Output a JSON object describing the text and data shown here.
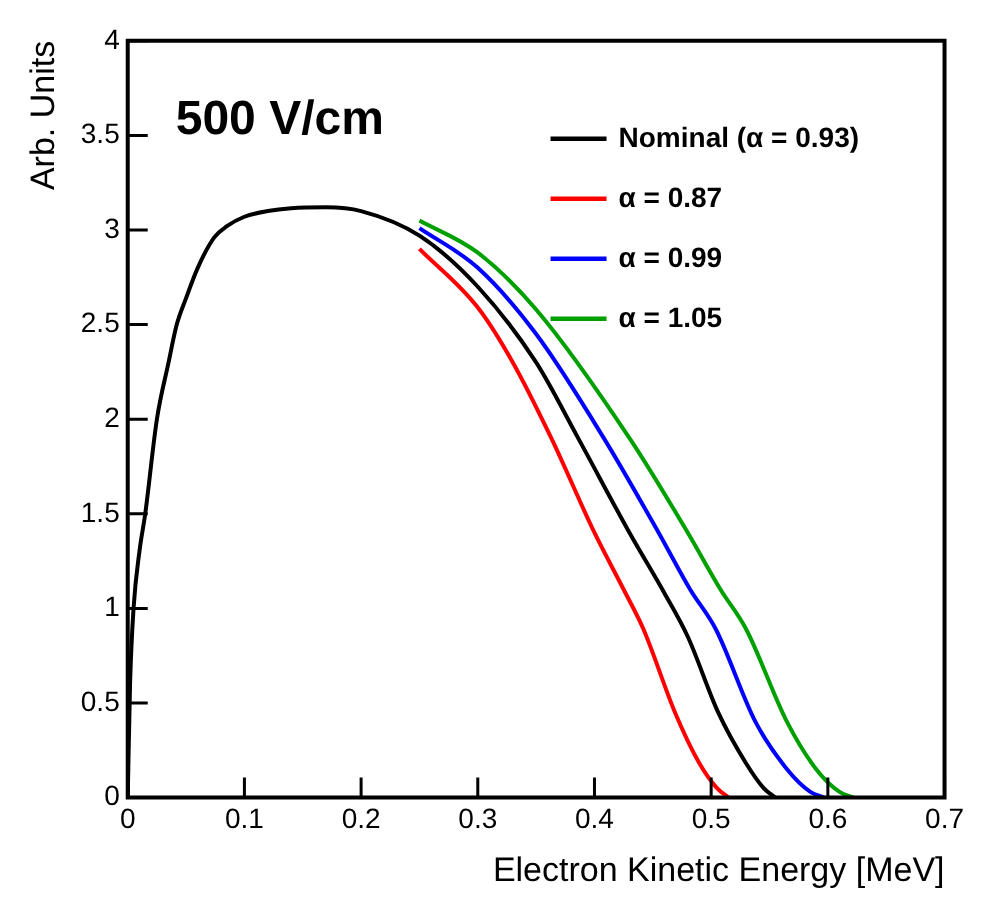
{
  "chart_data": {
    "type": "line",
    "title": "500 V/cm",
    "xlabel": "Electron Kinetic Energy [MeV]",
    "ylabel": "Arb. Units",
    "xlim": [
      0,
      0.7
    ],
    "xticks": [
      0,
      0.1,
      0.2,
      0.3,
      0.4,
      0.5,
      0.6,
      0.7
    ],
    "ylim": [
      0,
      4
    ],
    "yticks": [
      0,
      0.5,
      1,
      1.5,
      2,
      2.5,
      3,
      3.5,
      4
    ],
    "grid": false,
    "legend": "top right",
    "marker": "none",
    "line_style": "solid",
    "series": [
      {
        "name": "Nominal (α = 0.93)",
        "color": "#000000",
        "x": [
          0,
          0.002,
          0.005,
          0.01,
          0.015,
          0.025,
          0.035,
          0.042,
          0.05,
          0.06,
          0.074,
          0.085,
          0.1,
          0.12,
          0.14,
          0.17,
          0.2,
          0.25,
          0.3,
          0.35,
          0.386,
          0.43,
          0.46,
          0.48,
          0.506,
          0.53,
          0.545,
          0.555
        ],
        "values": [
          0,
          0.6,
          1.0,
          1.3,
          1.5,
          2.0,
          2.3,
          2.5,
          2.64,
          2.8,
          2.96,
          3.02,
          3.07,
          3.1,
          3.115,
          3.12,
          3.1,
          2.97,
          2.7,
          2.3,
          1.9,
          1.4,
          1.08,
          0.85,
          0.45,
          0.18,
          0.05,
          0
        ]
      },
      {
        "name": "α = 0.87",
        "color": "#ff0000",
        "x": [
          0.25,
          0.3,
          0.33,
          0.363,
          0.4,
          0.425,
          0.442,
          0.469,
          0.49,
          0.505,
          0.515
        ],
        "values": [
          2.9,
          2.59,
          2.3,
          1.9,
          1.4,
          1.1,
          0.89,
          0.45,
          0.18,
          0.05,
          0
        ]
      },
      {
        "name": "α = 0.99",
        "color": "#0000ff",
        "x": [
          0.25,
          0.3,
          0.35,
          0.408,
          0.455,
          0.482,
          0.504,
          0.538,
          0.565,
          0.585,
          0.597
        ],
        "values": [
          3.01,
          2.8,
          2.45,
          1.9,
          1.4,
          1.1,
          0.89,
          0.4,
          0.15,
          0.03,
          0
        ]
      },
      {
        "name": "α = 1.05",
        "color": "#00a000",
        "x": [
          0.25,
          0.3,
          0.35,
          0.43,
          0.48,
          0.508,
          0.53,
          0.565,
          0.59,
          0.61,
          0.622
        ],
        "values": [
          3.05,
          2.88,
          2.58,
          1.9,
          1.4,
          1.1,
          0.89,
          0.4,
          0.15,
          0.03,
          0
        ]
      }
    ]
  }
}
